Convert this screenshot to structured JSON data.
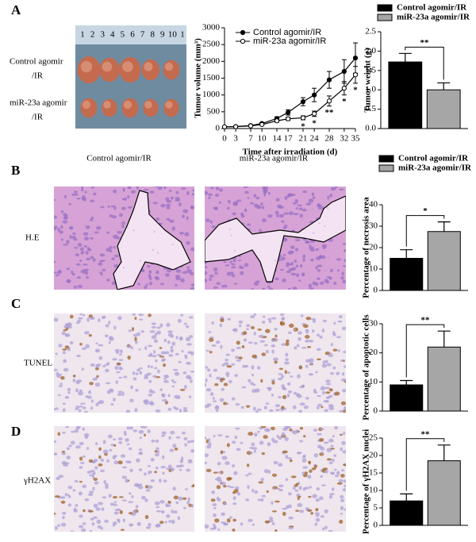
{
  "panel_labels": [
    "A",
    "B",
    "C",
    "D"
  ],
  "photo": {
    "ruler": [
      "1",
      "2",
      "3",
      "4",
      "5",
      "6",
      "7",
      "8",
      "9",
      "10",
      "1"
    ],
    "rows": [
      [
        "Control agomir",
        "/IR"
      ],
      [
        "miR-23a agomir",
        "/IR"
      ]
    ]
  },
  "histology": {
    "columns": [
      "Control agomir/IR",
      "miR-23a agomir/IR"
    ],
    "rows": [
      "H.E",
      "TUNEL",
      "γH2AX"
    ]
  },
  "chart_data": [
    {
      "type": "line",
      "xlabel": "Time after irradiation (d)",
      "ylabel": "Tumor volume (mm³)",
      "x": [
        0,
        3,
        7,
        10,
        14,
        17,
        21,
        24,
        28,
        32,
        35
      ],
      "series": [
        {
          "name": "Control agomir/IR",
          "color": "#000000",
          "marker": "filled",
          "values": [
            50,
            60,
            90,
            150,
            300,
            480,
            800,
            1000,
            1450,
            1700,
            2100
          ],
          "errors": [
            5,
            10,
            15,
            30,
            50,
            80,
            120,
            200,
            250,
            350,
            450
          ]
        },
        {
          "name": "miR-23a agomir/IR",
          "color": "#000000",
          "marker": "open",
          "values": [
            50,
            55,
            80,
            120,
            230,
            290,
            320,
            440,
            820,
            1200,
            1600
          ],
          "errors": [
            5,
            10,
            15,
            20,
            40,
            50,
            60,
            80,
            150,
            200,
            250
          ]
        }
      ],
      "annotations": [
        {
          "x": 21,
          "text": "*"
        },
        {
          "x": 24,
          "text": "*"
        },
        {
          "x": 28,
          "text": "**"
        },
        {
          "x": 32,
          "text": "*"
        },
        {
          "x": 35,
          "text": "*"
        }
      ],
      "xlim": [
        0,
        35
      ],
      "xticks": [
        0,
        3,
        7,
        10,
        14,
        17,
        21,
        24,
        28,
        32,
        35
      ],
      "ylim": [
        0,
        3000
      ],
      "yticks": [
        0,
        500,
        1000,
        1500,
        2000,
        2500,
        3000
      ],
      "legend": "upper left"
    },
    {
      "type": "bar",
      "ylabel": "Tumor weight (g)",
      "series": [
        {
          "name": "Control agomir/IR",
          "color": "#000000",
          "values": [
            1.72
          ],
          "errors": [
            0.22
          ]
        },
        {
          "name": "miR-23a agomir/IR",
          "color": "#a6a6a6",
          "values": [
            1.0
          ],
          "errors": [
            0.18
          ]
        }
      ],
      "annotation": "**",
      "ylim": [
        0,
        2.5
      ],
      "yticks": [
        {
          "value": 0,
          "label": "0.0"
        },
        0.5,
        {
          "value": 1,
          "label": "1.0"
        },
        1.5,
        {
          "value": 2,
          "label": "2.0"
        },
        2.5
      ],
      "legend": "above"
    },
    {
      "type": "bar",
      "ylabel": "Percentage of necrosis area",
      "series": [
        {
          "name": "Control agomir/IR",
          "color": "#000000",
          "values": [
            15
          ],
          "errors": [
            4
          ]
        },
        {
          "name": "miR-23a agomir/IR",
          "color": "#a6a6a6",
          "values": [
            27.5
          ],
          "errors": [
            4.5
          ]
        }
      ],
      "annotation": "*",
      "ylim": [
        0,
        40
      ],
      "yticks": [
        0,
        10,
        20,
        30,
        40
      ],
      "legend": "above"
    },
    {
      "type": "bar",
      "ylabel": "Percentage of apoptotic cells",
      "series": [
        {
          "name": "Control agomir/IR",
          "color": "#000000",
          "values": [
            9
          ],
          "errors": [
            1.5
          ]
        },
        {
          "name": "miR-23a agomir/IR",
          "color": "#a6a6a6",
          "values": [
            22
          ],
          "errors": [
            5.5
          ]
        }
      ],
      "annotation": "**",
      "ylim": [
        0,
        30
      ],
      "yticks": [
        0,
        10,
        20,
        30
      ]
    },
    {
      "type": "bar",
      "ylabel": "Percentage of γH2AX nuclei",
      "series": [
        {
          "name": "Control agomir/IR",
          "color": "#000000",
          "values": [
            7
          ],
          "errors": [
            2
          ]
        },
        {
          "name": "miR-23a agomir/IR",
          "color": "#a6a6a6",
          "values": [
            18.5
          ],
          "errors": [
            4.5
          ]
        }
      ],
      "annotation": "**",
      "ylim": [
        0,
        25
      ],
      "yticks": [
        0,
        5,
        10,
        15,
        20,
        25
      ]
    }
  ]
}
